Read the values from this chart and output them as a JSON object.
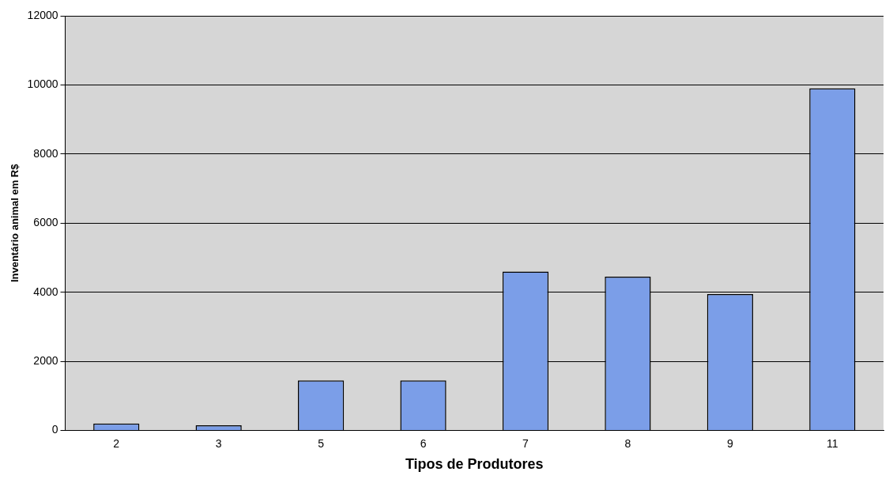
{
  "chart_data": {
    "type": "bar",
    "xlabel": "Tipos de Produtores",
    "ylabel": "Inventário animal em R$",
    "categories": [
      "2",
      "3",
      "5",
      "6",
      "7",
      "8",
      "9",
      "11"
    ],
    "values": [
      200,
      150,
      1450,
      1450,
      4600,
      4450,
      3950,
      9900
    ],
    "color": "#7b9ee8",
    "ylim": [
      0,
      12000
    ],
    "yticks": [
      0,
      2000,
      4000,
      6000,
      8000,
      10000,
      12000
    ],
    "grid": "y"
  }
}
